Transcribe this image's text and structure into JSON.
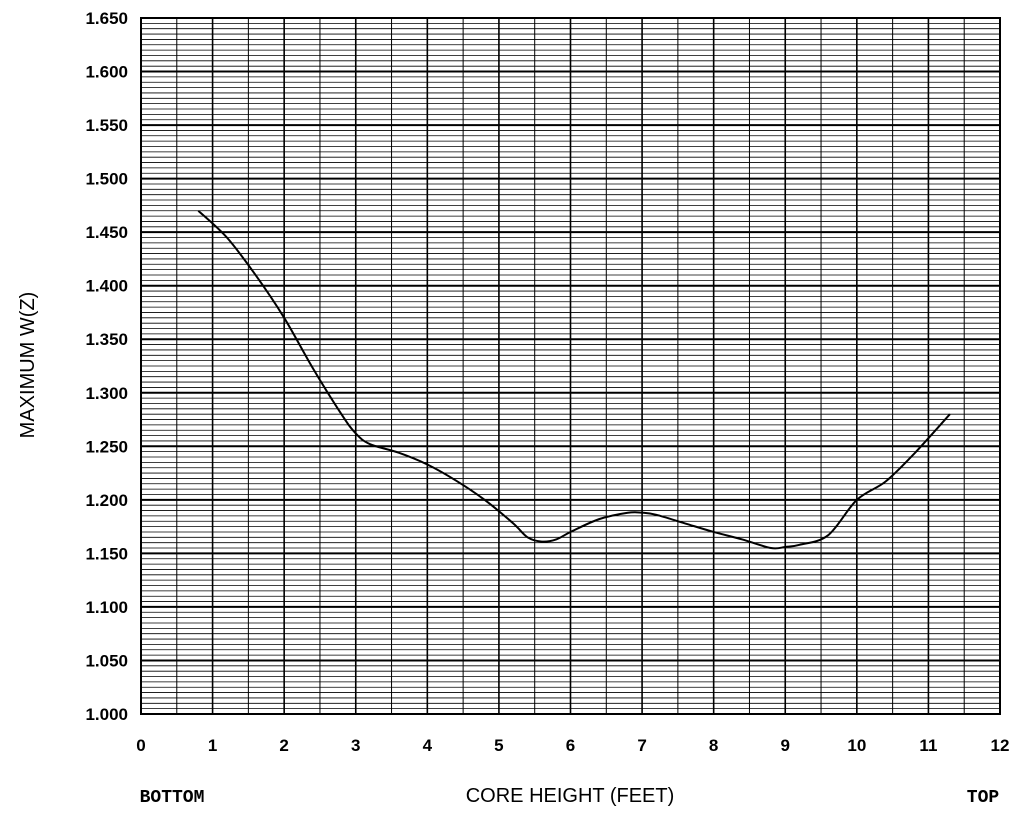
{
  "chart_data": {
    "type": "line",
    "title": "",
    "xlabel": "CORE HEIGHT (FEET)",
    "ylabel": "MAXIMUM W(Z)",
    "x_end_labels": {
      "left": "BOTTOM",
      "right": "TOP"
    },
    "xlim": [
      0,
      12
    ],
    "ylim": [
      1.0,
      1.65
    ],
    "x_ticks": [
      "0",
      "1",
      "2",
      "3",
      "4",
      "5",
      "6",
      "7",
      "8",
      "9",
      "10",
      "11",
      "12"
    ],
    "y_ticks": [
      "1.000",
      "1.050",
      "1.100",
      "1.150",
      "1.200",
      "1.250",
      "1.300",
      "1.350",
      "1.400",
      "1.450",
      "1.500",
      "1.550",
      "1.600",
      "1.650"
    ],
    "grid": true,
    "legend": "none",
    "series": [
      {
        "x": [
          0.8,
          1.2,
          1.6,
          2.0,
          2.4,
          2.8,
          3.0,
          3.2,
          3.6,
          4.0,
          4.4,
          4.8,
          5.2,
          5.4,
          5.6,
          5.8,
          6.0,
          6.4,
          6.8,
          7.0,
          7.2,
          7.6,
          8.0,
          8.4,
          8.8,
          9.0,
          9.2,
          9.6,
          10.0,
          10.4,
          10.8,
          11.3
        ],
        "y": [
          1.47,
          1.445,
          1.41,
          1.37,
          1.323,
          1.28,
          1.262,
          1.252,
          1.244,
          1.233,
          1.218,
          1.2,
          1.178,
          1.165,
          1.161,
          1.163,
          1.17,
          1.182,
          1.188,
          1.188,
          1.186,
          1.178,
          1.17,
          1.163,
          1.155,
          1.156,
          1.158,
          1.167,
          1.2,
          1.217,
          1.243,
          1.28
        ],
        "color": "#000000"
      }
    ]
  }
}
